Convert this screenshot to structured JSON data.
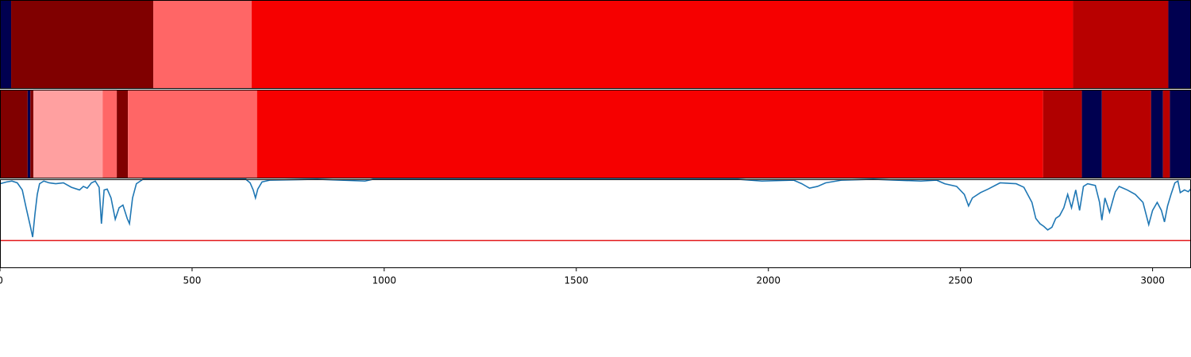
{
  "chart_data": [
    {
      "type": "segments",
      "xlim": [
        0,
        3100
      ],
      "segments": [
        {
          "start": 0,
          "end": 29,
          "color": "#000050"
        },
        {
          "start": 29,
          "end": 399,
          "color": "#800000"
        },
        {
          "start": 399,
          "end": 655,
          "color": "#ff6666"
        },
        {
          "start": 655,
          "end": 2793,
          "color": "#f60000"
        },
        {
          "start": 2793,
          "end": 3041,
          "color": "#b80000"
        },
        {
          "start": 3041,
          "end": 3100,
          "color": "#000050"
        }
      ]
    },
    {
      "type": "segments",
      "xlim": [
        0,
        3100
      ],
      "segments": [
        {
          "start": 0,
          "end": 72,
          "color": "#800000"
        },
        {
          "start": 72,
          "end": 79,
          "color": "#000050"
        },
        {
          "start": 79,
          "end": 87,
          "color": "#800000"
        },
        {
          "start": 87,
          "end": 267,
          "color": "#ffa0a0"
        },
        {
          "start": 267,
          "end": 304,
          "color": "#ff6666"
        },
        {
          "start": 304,
          "end": 333,
          "color": "#800000"
        },
        {
          "start": 333,
          "end": 669,
          "color": "#ff6666"
        },
        {
          "start": 669,
          "end": 2715,
          "color": "#f60000"
        },
        {
          "start": 2715,
          "end": 2816,
          "color": "#b00000"
        },
        {
          "start": 2816,
          "end": 2868,
          "color": "#000050"
        },
        {
          "start": 2868,
          "end": 2996,
          "color": "#b80000"
        },
        {
          "start": 2996,
          "end": 3027,
          "color": "#000050"
        },
        {
          "start": 3027,
          "end": 3045,
          "color": "#b80000"
        },
        {
          "start": 3045,
          "end": 3100,
          "color": "#000050"
        }
      ]
    },
    {
      "type": "line",
      "xlim": [
        0,
        3100
      ],
      "ylim": [
        0,
        1
      ],
      "xticks": [
        0,
        500,
        1000,
        1500,
        2000,
        2500,
        3000
      ],
      "color": "#1f77b4",
      "threshold": 0.31,
      "threshold_color": "#e31a1c",
      "x": [
        0,
        17,
        31,
        45,
        58,
        68,
        79,
        85,
        91,
        97,
        103,
        114,
        128,
        145,
        165,
        186,
        207,
        217,
        227,
        238,
        248,
        258,
        264,
        271,
        279,
        289,
        300,
        310,
        320,
        331,
        337,
        345,
        355,
        372,
        640,
        651,
        659,
        665,
        671,
        682,
        702,
        826,
        950,
        971,
        1921,
        1983,
        2066,
        2087,
        2107,
        2128,
        2149,
        2190,
        2273,
        2397,
        2438,
        2459,
        2490,
        2510,
        2521,
        2531,
        2552,
        2572,
        2603,
        2645,
        2665,
        2686,
        2696,
        2707,
        2717,
        2727,
        2738,
        2748,
        2758,
        2769,
        2779,
        2789,
        2800,
        2810,
        2820,
        2831,
        2851,
        2862,
        2868,
        2876,
        2888,
        2897,
        2903,
        2913,
        2934,
        2955,
        2975,
        2990,
        3000,
        3012,
        3023,
        3031,
        3039,
        3048,
        3058,
        3066,
        3072,
        3083,
        3093,
        3099
      ],
      "values": [
        0.95,
        0.97,
        0.98,
        0.96,
        0.88,
        0.68,
        0.47,
        0.35,
        0.61,
        0.83,
        0.95,
        0.98,
        0.96,
        0.95,
        0.96,
        0.91,
        0.88,
        0.92,
        0.9,
        0.96,
        0.98,
        0.91,
        0.5,
        0.88,
        0.89,
        0.79,
        0.55,
        0.68,
        0.71,
        0.56,
        0.5,
        0.79,
        0.95,
        1.0,
        1.0,
        0.96,
        0.88,
        0.79,
        0.89,
        0.97,
        0.99,
        1.0,
        0.98,
        1.0,
        1.0,
        0.98,
        0.99,
        0.95,
        0.9,
        0.92,
        0.96,
        0.99,
        1.0,
        0.98,
        0.99,
        0.95,
        0.92,
        0.83,
        0.7,
        0.79,
        0.85,
        0.89,
        0.96,
        0.95,
        0.91,
        0.74,
        0.56,
        0.5,
        0.47,
        0.43,
        0.46,
        0.56,
        0.59,
        0.68,
        0.83,
        0.68,
        0.88,
        0.65,
        0.92,
        0.95,
        0.93,
        0.74,
        0.54,
        0.79,
        0.63,
        0.77,
        0.86,
        0.92,
        0.88,
        0.83,
        0.74,
        0.49,
        0.65,
        0.74,
        0.65,
        0.52,
        0.7,
        0.83,
        0.96,
        0.98,
        0.85,
        0.88,
        0.86,
        0.89
      ]
    }
  ]
}
